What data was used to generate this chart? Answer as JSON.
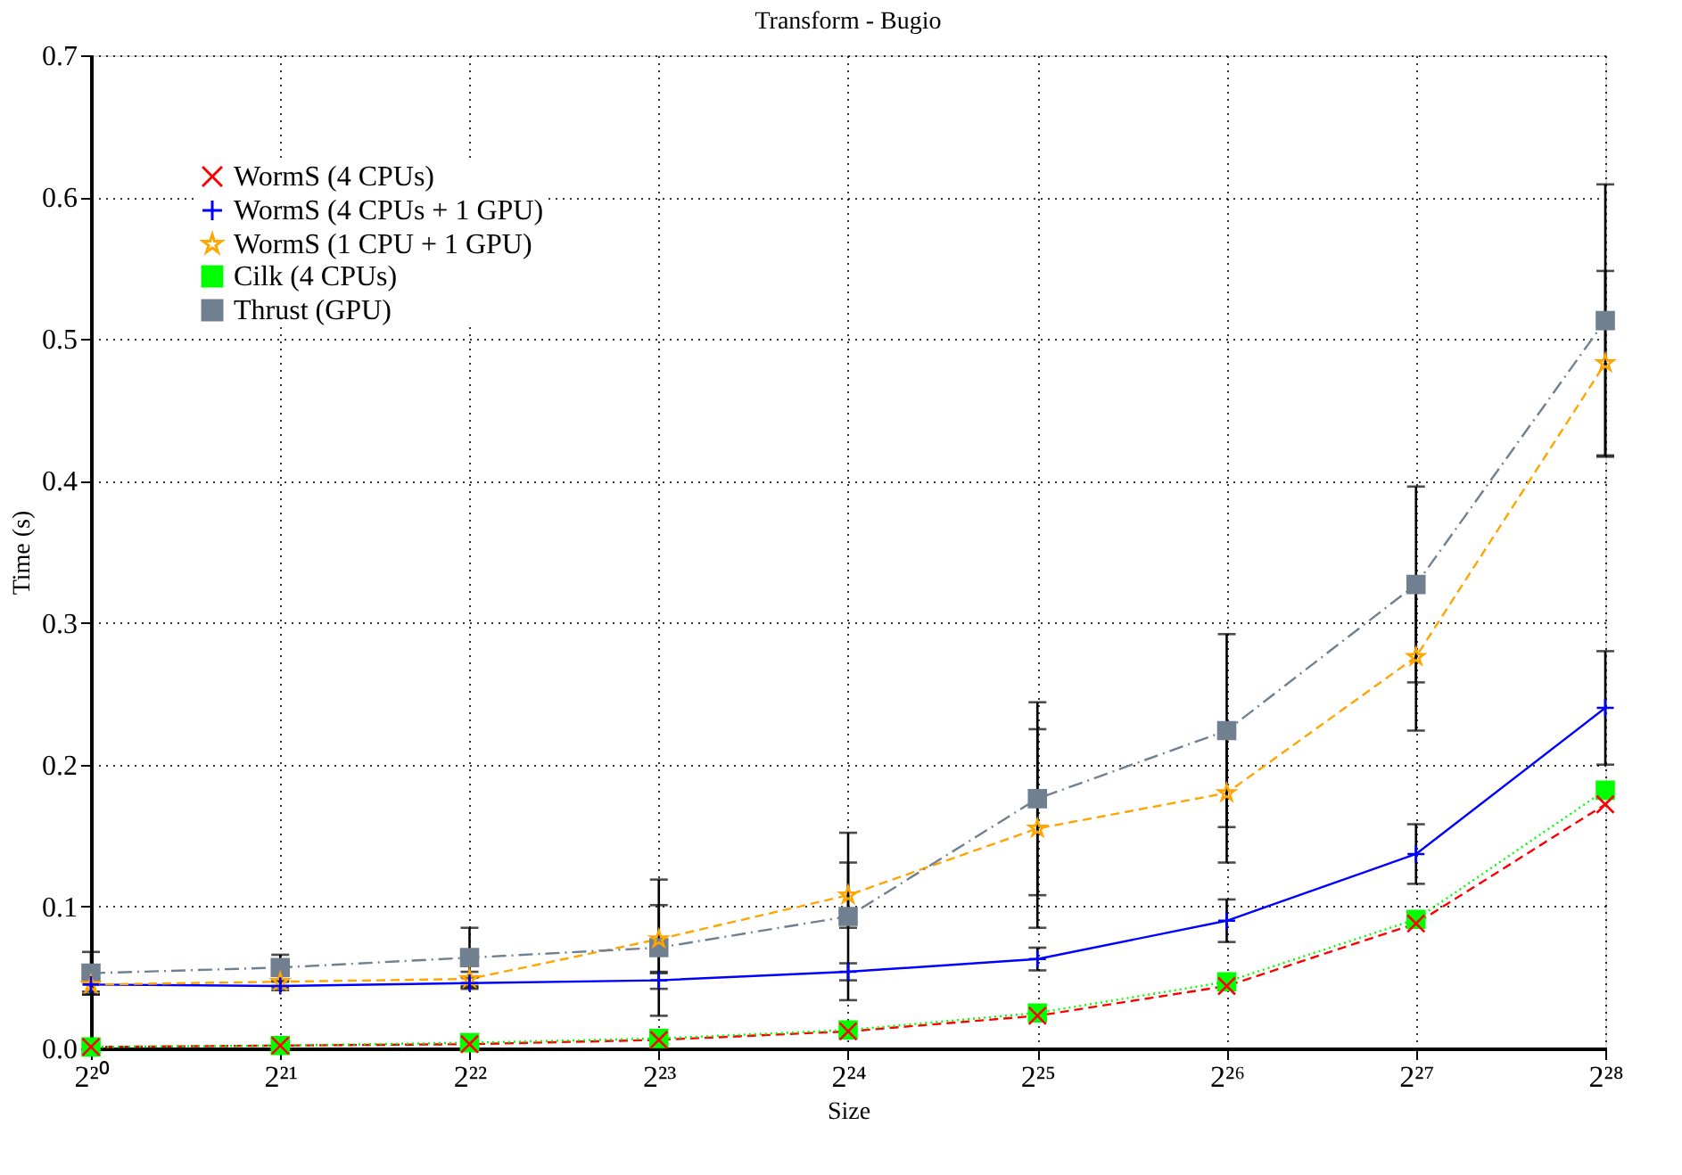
{
  "chart_data": {
    "type": "line",
    "title": "Transform - Bugio",
    "xlabel": "Size",
    "ylabel": "Time (s)",
    "x": [
      1048576,
      2097152,
      4194304,
      8388608,
      16777216,
      33554432,
      67108864,
      134217728,
      268435456
    ],
    "log": "x",
    "xlim": [
      1048576,
      268435456
    ],
    "xticks": [
      {
        "value": 1048576,
        "label": "2²⁰"
      },
      {
        "value": 2097152,
        "label": "2²¹"
      },
      {
        "value": 4194304,
        "label": "2²²"
      },
      {
        "value": 8388608,
        "label": "2²³"
      },
      {
        "value": 16777216,
        "label": "2²⁴"
      },
      {
        "value": 33554432,
        "label": "2²⁵"
      },
      {
        "value": 67108864,
        "label": "2²⁶"
      },
      {
        "value": 134217728,
        "label": "2²⁷"
      },
      {
        "value": 268435456,
        "label": "2²⁸"
      }
    ],
    "ylim": [
      0,
      0.7
    ],
    "yticks": [
      {
        "value": 0,
        "label": "0.0"
      },
      0.1,
      0.2,
      0.3,
      0.4,
      0.5,
      0.6,
      0.7
    ],
    "grid": true,
    "legend": "top left",
    "series": [
      {
        "name": "WormS (4 CPUs)",
        "color": "#ff0000",
        "marker": "cross",
        "line_style": "dashed",
        "values": [
          0.001,
          0.002,
          0.003,
          0.006,
          0.012,
          0.023,
          0.044,
          0.088,
          0.172
        ]
      },
      {
        "name": "WormS (4 CPUs + 1 GPU)",
        "color": "#0000ff",
        "marker": "plus",
        "line_style": "solid",
        "values": [
          0.045,
          0.044,
          0.046,
          0.048,
          0.054,
          0.063,
          0.09,
          0.137,
          0.24
        ],
        "errors": [
          0.007,
          0.003,
          0.004,
          0.006,
          0.006,
          0.008,
          0.015,
          0.021,
          0.04
        ]
      },
      {
        "name": "WormS (1 CPU + 1 GPU)",
        "color": "#ffa500",
        "marker": "star",
        "line_style": "dashed",
        "values": [
          0.045,
          0.047,
          0.049,
          0.077,
          0.108,
          0.155,
          0.18,
          0.276,
          0.483
        ],
        "errors": [
          0.005,
          0.004,
          0.005,
          0.024,
          0.023,
          0.07,
          0.049,
          0.052,
          0.065
        ]
      },
      {
        "name": "Cilk (4 CPUs)",
        "color": "#00ff00",
        "marker": "square",
        "line_style": "dotted",
        "values": [
          0.001,
          0.002,
          0.004,
          0.007,
          0.013,
          0.025,
          0.047,
          0.091,
          0.182
        ]
      },
      {
        "name": "Thrust (GPU)",
        "color": "#708090",
        "marker": "square",
        "line_style": "dashdot",
        "values": [
          0.053,
          0.057,
          0.064,
          0.071,
          0.093,
          0.176,
          0.224,
          0.327,
          0.513
        ],
        "errors": [
          0.015,
          0.009,
          0.021,
          0.048,
          0.059,
          0.068,
          0.068,
          0.069,
          0.096
        ]
      }
    ]
  }
}
